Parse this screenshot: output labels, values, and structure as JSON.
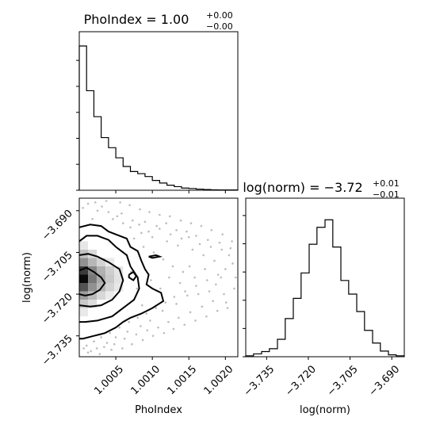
{
  "chart_data": [
    {
      "type": "bar",
      "panel": "top-left",
      "title": {
        "main": "PhoIndex = 1.00",
        "sup": "+0.00",
        "sub": "−0.00"
      },
      "xlim": [
        1.0,
        1.00217
      ],
      "bin_edges": [
        1.0,
        1.0001,
        1.0002,
        1.0003,
        1.0004,
        1.0005,
        1.0006,
        1.0007,
        1.0008,
        1.0009,
        1.001,
        1.0011,
        1.0012,
        1.0013,
        1.0014,
        1.0015,
        1.0016,
        1.0017,
        1.0018,
        1.0019,
        1.00217
      ],
      "counts": [
        1000,
        690,
        510,
        365,
        295,
        225,
        165,
        130,
        115,
        95,
        68,
        50,
        35,
        25,
        15,
        12,
        8,
        5,
        3,
        2
      ],
      "ylim": [
        0,
        1000
      ],
      "xticks": [
        1.0005,
        1.001,
        1.0015,
        1.002
      ],
      "yticks": [
        0,
        180,
        360,
        540,
        720,
        900
      ]
    },
    {
      "type": "heatmap",
      "panel": "bottom-left",
      "xlabel": "PhoIndex",
      "ylabel": "log(norm)",
      "xlim": [
        1.0,
        1.00217
      ],
      "ylim": [
        -3.7425,
        -3.6855
      ],
      "xticks": [
        1.0005,
        1.001,
        1.0015,
        1.002
      ],
      "xtick_labels": [
        "1.0005",
        "1.0010",
        "1.0015",
        "1.0020"
      ],
      "yticks": [
        -3.69,
        -3.705,
        -3.72,
        -3.735
      ],
      "ytick_labels": [
        "−3.690",
        "−3.705",
        "−3.720",
        "−3.735"
      ],
      "cells": [
        {
          "x": 1.0,
          "y": -3.716,
          "w": 0.00012,
          "h": 0.003,
          "v": 1.0
        },
        {
          "x": 1.0,
          "y": -3.713,
          "w": 0.00012,
          "h": 0.003,
          "v": 0.8
        },
        {
          "x": 1.0,
          "y": -3.719,
          "w": 0.00012,
          "h": 0.003,
          "v": 0.7
        },
        {
          "x": 1.00012,
          "y": -3.716,
          "w": 0.00012,
          "h": 0.003,
          "v": 0.55
        },
        {
          "x": 1.00012,
          "y": -3.713,
          "w": 0.00012,
          "h": 0.003,
          "v": 0.5
        },
        {
          "x": 1.00012,
          "y": -3.719,
          "w": 0.00012,
          "h": 0.003,
          "v": 0.45
        },
        {
          "x": 1.0,
          "y": -3.71,
          "w": 0.00012,
          "h": 0.003,
          "v": 0.45
        },
        {
          "x": 1.0,
          "y": -3.722,
          "w": 0.00012,
          "h": 0.003,
          "v": 0.4
        },
        {
          "x": 1.00024,
          "y": -3.713,
          "w": 0.00012,
          "h": 0.003,
          "v": 0.32
        },
        {
          "x": 1.00024,
          "y": -3.716,
          "w": 0.00012,
          "h": 0.003,
          "v": 0.35
        },
        {
          "x": 1.00024,
          "y": -3.719,
          "w": 0.00012,
          "h": 0.003,
          "v": 0.3
        },
        {
          "x": 1.00012,
          "y": -3.71,
          "w": 0.00012,
          "h": 0.003,
          "v": 0.3
        },
        {
          "x": 1.00012,
          "y": -3.722,
          "w": 0.00012,
          "h": 0.003,
          "v": 0.28
        },
        {
          "x": 1.0,
          "y": -3.707,
          "w": 0.00012,
          "h": 0.003,
          "v": 0.25
        },
        {
          "x": 1.0,
          "y": -3.725,
          "w": 0.00012,
          "h": 0.003,
          "v": 0.22
        },
        {
          "x": 1.00036,
          "y": -3.713,
          "w": 0.00012,
          "h": 0.003,
          "v": 0.2
        },
        {
          "x": 1.00036,
          "y": -3.716,
          "w": 0.00012,
          "h": 0.003,
          "v": 0.22
        },
        {
          "x": 1.00036,
          "y": -3.719,
          "w": 0.00012,
          "h": 0.003,
          "v": 0.18
        },
        {
          "x": 1.00024,
          "y": -3.71,
          "w": 0.00012,
          "h": 0.003,
          "v": 0.18
        },
        {
          "x": 1.00024,
          "y": -3.722,
          "w": 0.00012,
          "h": 0.003,
          "v": 0.16
        },
        {
          "x": 1.00012,
          "y": -3.707,
          "w": 0.00012,
          "h": 0.003,
          "v": 0.15
        },
        {
          "x": 1.00012,
          "y": -3.725,
          "w": 0.00012,
          "h": 0.003,
          "v": 0.14
        },
        {
          "x": 1.00048,
          "y": -3.716,
          "w": 0.00012,
          "h": 0.003,
          "v": 0.12
        },
        {
          "x": 1.00048,
          "y": -3.713,
          "w": 0.00012,
          "h": 0.003,
          "v": 0.11
        },
        {
          "x": 1.00048,
          "y": -3.719,
          "w": 0.00012,
          "h": 0.003,
          "v": 0.1
        },
        {
          "x": 1.0,
          "y": -3.704,
          "w": 0.00012,
          "h": 0.003,
          "v": 0.1
        },
        {
          "x": 1.0,
          "y": -3.728,
          "w": 0.00012,
          "h": 0.003,
          "v": 0.09
        },
        {
          "x": 1.00036,
          "y": -3.71,
          "w": 0.00012,
          "h": 0.003,
          "v": 0.09
        },
        {
          "x": 1.00036,
          "y": -3.722,
          "w": 0.00012,
          "h": 0.003,
          "v": 0.08
        }
      ],
      "scatter": [
        [
          1.00005,
          -3.689
        ],
        [
          1.00012,
          -3.6875
        ],
        [
          1.00025,
          -3.69
        ],
        [
          1.00031,
          -3.6885
        ],
        [
          1.0004,
          -3.6905
        ],
        [
          1.00018,
          -3.693
        ],
        [
          1.00052,
          -3.692
        ],
        [
          1.0006,
          -3.6945
        ],
        [
          1.0007,
          -3.696
        ],
        [
          1.00082,
          -3.695
        ],
        [
          1.00095,
          -3.6975
        ],
        [
          1.0011,
          -3.6965
        ],
        [
          1.00125,
          -3.6985
        ],
        [
          1.0014,
          -3.7
        ],
        [
          1.0015,
          -3.6995
        ],
        [
          1.00165,
          -3.702
        ],
        [
          1.0018,
          -3.703
        ],
        [
          1.00195,
          -3.704
        ],
        [
          1.00205,
          -3.706
        ],
        [
          1.0021,
          -3.709
        ],
        [
          1.002,
          -3.711
        ],
        [
          1.0019,
          -3.713
        ],
        [
          1.00175,
          -3.715
        ],
        [
          1.0016,
          -3.717
        ],
        [
          1.00145,
          -3.719
        ],
        [
          1.0013,
          -3.721
        ],
        [
          1.00118,
          -3.723
        ],
        [
          1.00105,
          -3.725
        ],
        [
          1.00092,
          -3.727
        ],
        [
          1.0008,
          -3.7285
        ],
        [
          1.00068,
          -3.73
        ],
        [
          1.00055,
          -3.732
        ],
        [
          1.00042,
          -3.734
        ],
        [
          1.0003,
          -3.7355
        ],
        [
          1.0002,
          -3.737
        ],
        [
          1.0001,
          -3.7385
        ],
        [
          1.00006,
          -3.7395
        ],
        [
          1.00016,
          -3.7405
        ],
        [
          1.00034,
          -3.739
        ],
        [
          1.00048,
          -3.738
        ],
        [
          1.00062,
          -3.736
        ],
        [
          1.00078,
          -3.7345
        ],
        [
          1.00093,
          -3.733
        ],
        [
          1.00108,
          -3.732
        ],
        [
          1.00122,
          -3.73
        ],
        [
          1.00136,
          -3.7285
        ],
        [
          1.00152,
          -3.7265
        ],
        [
          1.00168,
          -3.7245
        ],
        [
          1.00183,
          -3.7225
        ],
        [
          1.00198,
          -3.72
        ],
        [
          1.00212,
          -3.718
        ],
        [
          1.00185,
          -3.708
        ],
        [
          1.0017,
          -3.706
        ],
        [
          1.00155,
          -3.704
        ],
        [
          1.00135,
          -3.7025
        ],
        [
          1.0012,
          -3.701
        ],
        [
          1.001,
          -3.6995
        ],
        [
          1.00085,
          -3.698
        ],
        [
          1.00075,
          -3.7
        ],
        [
          1.00088,
          -3.703
        ],
        [
          1.00102,
          -3.705
        ],
        [
          1.00115,
          -3.7075
        ],
        [
          1.00128,
          -3.71
        ],
        [
          1.00142,
          -3.712
        ],
        [
          1.00158,
          -3.714
        ],
        [
          1.00172,
          -3.711
        ],
        [
          1.00187,
          -3.7165
        ],
        [
          1.00148,
          -3.7205
        ],
        [
          1.00133,
          -3.7235
        ],
        [
          1.00114,
          -3.726
        ],
        [
          1.00097,
          -3.7295
        ],
        [
          1.00084,
          -3.7315
        ],
        [
          1.00066,
          -3.7335
        ],
        [
          1.0005,
          -3.7355
        ],
        [
          1.00038,
          -3.7375
        ],
        [
          1.00024,
          -3.7395
        ],
        [
          1.00058,
          -3.691
        ],
        [
          1.00046,
          -3.693
        ],
        [
          1.00073,
          -3.6935
        ],
        [
          1.0009,
          -3.694
        ],
        [
          1.00106,
          -3.6955
        ],
        [
          1.00119,
          -3.6945
        ],
        [
          1.00133,
          -3.697
        ],
        [
          1.00147,
          -3.6975
        ],
        [
          1.0016,
          -3.699
        ],
        [
          1.00176,
          -3.7005
        ],
        [
          1.00192,
          -3.7015
        ],
        [
          1.00207,
          -3.7035
        ],
        [
          1.00065,
          -3.706
        ],
        [
          1.00071,
          -3.712
        ],
        [
          1.00079,
          -3.718
        ],
        [
          1.00086,
          -3.724
        ],
        [
          1.00098,
          -3.715
        ],
        [
          1.00111,
          -3.718
        ],
        [
          1.00123,
          -3.714
        ],
        [
          1.00138,
          -3.716
        ],
        [
          1.00151,
          -3.71
        ],
        [
          1.00163,
          -3.72
        ],
        [
          1.00178,
          -3.719
        ],
        [
          1.00194,
          -3.714
        ],
        [
          1.00203,
          -3.725
        ],
        [
          1.00012,
          -3.741
        ],
        [
          1.00028,
          -3.7415
        ],
        [
          1.00044,
          -3.74
        ],
        [
          1.00059,
          -3.7395
        ],
        [
          1.00072,
          -3.738
        ],
        [
          1.00087,
          -3.7365
        ],
        [
          1.00101,
          -3.735
        ],
        [
          1.00116,
          -3.734
        ],
        [
          1.00129,
          -3.7325
        ],
        [
          1.00144,
          -3.731
        ],
        [
          1.00159,
          -3.7295
        ],
        [
          1.00174,
          -3.728
        ],
        [
          1.00189,
          -3.726
        ],
        [
          1.00201,
          -3.723
        ],
        [
          1.00214,
          -3.714
        ],
        [
          1.00209,
          -3.701
        ],
        [
          1.00196,
          -3.6985
        ],
        [
          1.00181,
          -3.697
        ],
        [
          1.00167,
          -3.6955
        ],
        [
          1.00153,
          -3.6945
        ],
        [
          1.00139,
          -3.6935
        ],
        [
          1.00124,
          -3.692
        ],
        [
          1.0011,
          -3.6915
        ],
        [
          1.00096,
          -3.6905
        ],
        [
          1.00083,
          -3.6895
        ],
        [
          1.00069,
          -3.688
        ],
        [
          1.00056,
          -3.687
        ],
        [
          1.00037,
          -3.6865
        ],
        [
          1.00022,
          -3.687
        ]
      ],
      "contours": [
        [
          [
            1.0,
            -3.7115
          ],
          [
            1.0001,
            -3.7105
          ],
          [
            1.0002,
            -3.712
          ],
          [
            1.0003,
            -3.714
          ],
          [
            1.00035,
            -3.716
          ],
          [
            1.00028,
            -3.7185
          ],
          [
            1.00018,
            -3.72
          ],
          [
            1.00008,
            -3.7205
          ],
          [
            1.0,
            -3.72
          ]
        ],
        [
          [
            1.0,
            -3.706
          ],
          [
            1.00012,
            -3.7055
          ],
          [
            1.00025,
            -3.7065
          ],
          [
            1.0004,
            -3.7085
          ],
          [
            1.00055,
            -3.711
          ],
          [
            1.0006,
            -3.715
          ],
          [
            1.00055,
            -3.719
          ],
          [
            1.00045,
            -3.722
          ],
          [
            1.0003,
            -3.724
          ],
          [
            1.00015,
            -3.7245
          ],
          [
            1.0,
            -3.724
          ]
        ],
        [
          [
            1.0,
            -3.701
          ],
          [
            1.0001,
            -3.699
          ],
          [
            1.00025,
            -3.699
          ],
          [
            1.0004,
            -3.7005
          ],
          [
            1.0005,
            -3.703
          ],
          [
            1.00065,
            -3.706
          ],
          [
            1.0007,
            -3.71
          ],
          [
            1.0008,
            -3.714
          ],
          [
            1.00082,
            -3.718
          ],
          [
            1.00075,
            -3.722
          ],
          [
            1.0006,
            -3.725
          ],
          [
            1.00045,
            -3.728
          ],
          [
            1.00025,
            -3.7295
          ],
          [
            1.00008,
            -3.73
          ],
          [
            1.0,
            -3.73
          ]
        ],
        [
          [
            1.0,
            -3.696
          ],
          [
            1.00015,
            -3.695
          ],
          [
            1.0003,
            -3.6955
          ],
          [
            1.0004,
            -3.6975
          ],
          [
            1.00055,
            -3.699
          ],
          [
            1.00065,
            -3.7
          ],
          [
            1.0007,
            -3.703
          ],
          [
            1.0008,
            -3.7045
          ],
          [
            1.00085,
            -3.708
          ],
          [
            1.0009,
            -3.711
          ],
          [
            1.00095,
            -3.713
          ],
          [
            1.00092,
            -3.7165
          ],
          [
            1.001,
            -3.718
          ],
          [
            1.00112,
            -3.7195
          ],
          [
            1.00115,
            -3.7225
          ],
          [
            1.001,
            -3.725
          ],
          [
            1.00085,
            -3.727
          ],
          [
            1.0007,
            -3.7285
          ],
          [
            1.0006,
            -3.73
          ],
          [
            1.0005,
            -3.732
          ],
          [
            1.00035,
            -3.734
          ],
          [
            1.0002,
            -3.735
          ],
          [
            1.00005,
            -3.736
          ],
          [
            1.0,
            -3.736
          ]
        ],
        [
          [
            1.00068,
            -3.713
          ],
          [
            1.00074,
            -3.712
          ],
          [
            1.00078,
            -3.7135
          ],
          [
            1.00074,
            -3.715
          ],
          [
            1.00068,
            -3.714
          ],
          [
            1.00068,
            -3.713
          ]
        ],
        [
          [
            1.00095,
            -3.7065
          ],
          [
            1.00105,
            -3.706
          ],
          [
            1.0011,
            -3.7065
          ],
          [
            1.001,
            -3.707
          ],
          [
            1.00095,
            -3.7065
          ]
        ]
      ]
    },
    {
      "type": "bar",
      "panel": "bottom-right",
      "title": {
        "main": "log(norm) = −3.72",
        "sup": "+0.01",
        "sub": "−0.01"
      },
      "xlabel": "log(norm)",
      "xlim": [
        -3.7425,
        -3.6855
      ],
      "bin_edges": [
        -3.7425,
        -3.7397,
        -3.7368,
        -3.734,
        -3.7311,
        -3.7283,
        -3.7254,
        -3.7226,
        -3.7197,
        -3.7169,
        -3.714,
        -3.7112,
        -3.7083,
        -3.7055,
        -3.7026,
        -3.6998,
        -3.6969,
        -3.6941,
        -3.6912,
        -3.6884,
        -3.6855
      ],
      "counts": [
        2,
        6,
        11,
        17,
        37,
        81,
        124,
        178,
        239,
        275,
        291,
        233,
        162,
        133,
        96,
        56,
        29,
        12,
        4,
        2
      ],
      "ylim": [
        0,
        320
      ],
      "xticks": [
        -3.735,
        -3.72,
        -3.705,
        -3.69
      ],
      "xtick_labels": [
        "−3.735",
        "−3.720",
        "−3.705",
        "−3.690"
      ],
      "yticks": [
        0,
        60,
        120,
        180,
        240,
        300
      ]
    }
  ]
}
